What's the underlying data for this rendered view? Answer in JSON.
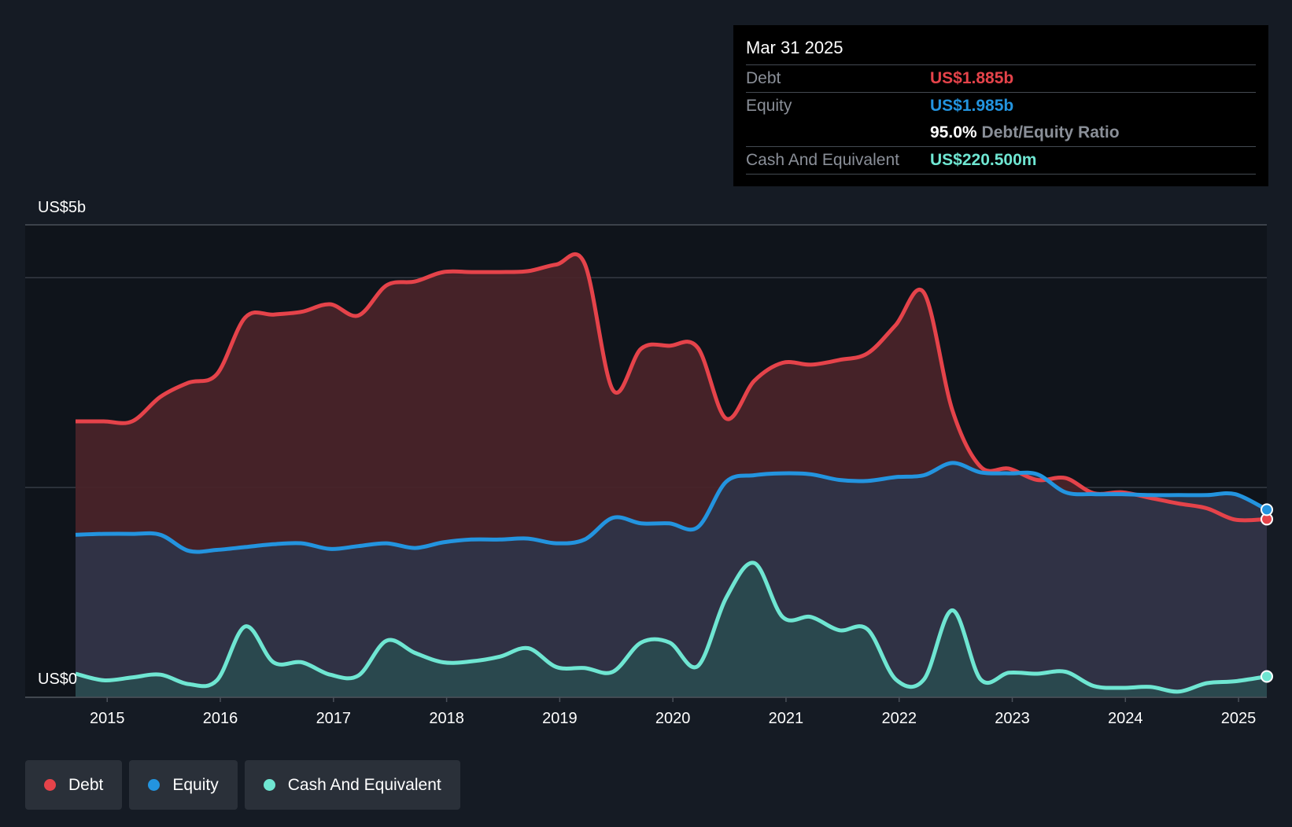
{
  "chart_data": {
    "type": "area",
    "y_top_label": "US$5b",
    "y_bottom_label": "US$0",
    "ylim": [
      0,
      5
    ],
    "y_unit": "US$b",
    "grid": true,
    "legend_position": "bottom-left",
    "x_ticks": [
      "2015",
      "2016",
      "2017",
      "2018",
      "2019",
      "2020",
      "2021",
      "2022",
      "2023",
      "2024",
      "2025"
    ],
    "x_range": [
      2014.72,
      2025.25
    ],
    "series": [
      {
        "name": "Debt",
        "color": "#e5434a",
        "fill": "#4a2429",
        "x": [
          2014.72,
          2014.97,
          2015.22,
          2015.47,
          2015.72,
          2015.97,
          2016.22,
          2016.47,
          2016.72,
          2016.97,
          2017.22,
          2017.47,
          2017.72,
          2017.97,
          2018.22,
          2018.47,
          2018.72,
          2018.97,
          2019.22,
          2019.47,
          2019.72,
          2019.97,
          2020.22,
          2020.47,
          2020.72,
          2020.97,
          2021.22,
          2021.47,
          2021.72,
          2021.97,
          2022.22,
          2022.47,
          2022.72,
          2022.97,
          2023.22,
          2023.47,
          2023.72,
          2023.97,
          2024.22,
          2024.47,
          2024.72,
          2024.97,
          2025.25
        ],
        "values": [
          2.92,
          2.92,
          2.92,
          3.18,
          3.33,
          3.42,
          4.02,
          4.05,
          4.08,
          4.16,
          4.04,
          4.36,
          4.4,
          4.5,
          4.5,
          4.5,
          4.51,
          4.58,
          4.59,
          3.25,
          3.69,
          3.72,
          3.7,
          2.95,
          3.35,
          3.54,
          3.52,
          3.57,
          3.64,
          3.94,
          4.28,
          3.04,
          2.44,
          2.42,
          2.3,
          2.32,
          2.16,
          2.17,
          2.11,
          2.05,
          2.0,
          1.88,
          1.885
        ]
      },
      {
        "name": "Equity",
        "color": "#2394df",
        "fill": "#2f3448",
        "x": [
          2014.72,
          2014.97,
          2015.22,
          2015.47,
          2015.72,
          2015.97,
          2016.22,
          2016.47,
          2016.72,
          2016.97,
          2017.22,
          2017.47,
          2017.72,
          2017.97,
          2018.22,
          2018.47,
          2018.72,
          2018.97,
          2019.22,
          2019.47,
          2019.72,
          2019.97,
          2020.22,
          2020.47,
          2020.72,
          2020.97,
          2021.22,
          2021.47,
          2021.72,
          2021.97,
          2022.22,
          2022.47,
          2022.72,
          2022.97,
          2023.22,
          2023.47,
          2023.72,
          2023.97,
          2024.22,
          2024.47,
          2024.72,
          2024.97,
          2025.25
        ],
        "values": [
          1.72,
          1.73,
          1.73,
          1.72,
          1.55,
          1.56,
          1.59,
          1.62,
          1.63,
          1.57,
          1.6,
          1.63,
          1.58,
          1.64,
          1.67,
          1.67,
          1.68,
          1.63,
          1.67,
          1.9,
          1.84,
          1.84,
          1.8,
          2.28,
          2.35,
          2.37,
          2.36,
          2.3,
          2.29,
          2.33,
          2.35,
          2.48,
          2.38,
          2.37,
          2.36,
          2.17,
          2.15,
          2.15,
          2.14,
          2.14,
          2.14,
          2.15,
          1.985
        ]
      },
      {
        "name": "Cash And Equivalent",
        "color": "#6fe6d2",
        "fill": "#2a4a4f",
        "x": [
          2014.72,
          2014.97,
          2015.22,
          2015.47,
          2015.72,
          2015.97,
          2016.22,
          2016.47,
          2016.72,
          2016.97,
          2017.22,
          2017.47,
          2017.72,
          2017.97,
          2018.22,
          2018.47,
          2018.72,
          2018.97,
          2019.22,
          2019.47,
          2019.72,
          2019.97,
          2020.22,
          2020.47,
          2020.72,
          2020.97,
          2021.22,
          2021.47,
          2021.72,
          2021.97,
          2022.22,
          2022.47,
          2022.72,
          2022.97,
          2023.22,
          2023.47,
          2023.72,
          2023.97,
          2024.22,
          2024.47,
          2024.72,
          2024.97,
          2025.25
        ],
        "values": [
          0.25,
          0.18,
          0.21,
          0.24,
          0.14,
          0.18,
          0.75,
          0.37,
          0.37,
          0.24,
          0.23,
          0.6,
          0.47,
          0.37,
          0.38,
          0.43,
          0.52,
          0.32,
          0.31,
          0.27,
          0.58,
          0.58,
          0.33,
          1.05,
          1.42,
          0.85,
          0.85,
          0.71,
          0.72,
          0.19,
          0.19,
          0.92,
          0.19,
          0.26,
          0.25,
          0.27,
          0.12,
          0.1,
          0.11,
          0.06,
          0.15,
          0.17,
          0.2205
        ]
      }
    ]
  },
  "tooltip": {
    "date": "Mar 31 2025",
    "debt_label": "Debt",
    "debt_value": "US$1.885b",
    "equity_label": "Equity",
    "equity_value": "US$1.985b",
    "ratio_value": "95.0%",
    "ratio_label": "Debt/Equity Ratio",
    "cash_label": "Cash And Equivalent",
    "cash_value": "US$220.500m"
  },
  "legend": {
    "items": [
      {
        "label": "Debt",
        "color": "#e5434a"
      },
      {
        "label": "Equity",
        "color": "#2394df"
      },
      {
        "label": "Cash And Equivalent",
        "color": "#6fe6d2"
      }
    ]
  }
}
